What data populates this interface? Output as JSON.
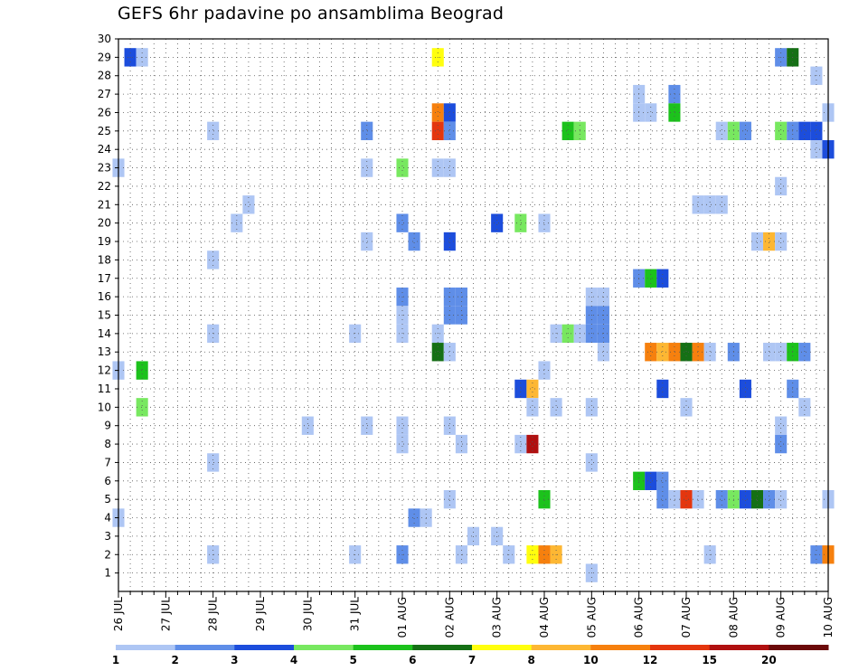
{
  "title": "GEFS 6hr padavine po ansamblima Beograd",
  "chart_data": {
    "type": "heatmap",
    "title": "GEFS 6hr padavine po ansamblima Beograd",
    "x_days": [
      "26 JUL",
      "27 JUL",
      "28 JUL",
      "29 JUL",
      "30 JUL",
      "31 JUL",
      "01 AUG",
      "02 AUG",
      "03 AUG",
      "04 AUG",
      "05 AUG",
      "06 AUG",
      "07 AUG",
      "08 AUG",
      "09 AUG",
      "10 AUG"
    ],
    "x_step": "6hr",
    "xlim_steps": [
      0,
      60
    ],
    "y_members": [
      1,
      2,
      3,
      4,
      5,
      6,
      7,
      8,
      9,
      10,
      11,
      12,
      13,
      14,
      15,
      16,
      17,
      18,
      19,
      20,
      21,
      22,
      23,
      24,
      25,
      26,
      27,
      28,
      29,
      30
    ],
    "ylim": [
      0,
      30
    ],
    "grid": "dotted",
    "colorbar": {
      "ticks": [
        "1",
        "2",
        "3",
        "4",
        "5",
        "6",
        "7",
        "8",
        "10",
        "12",
        "15",
        "20"
      ],
      "colors": [
        "#aec6f4",
        "#5f8ee8",
        "#1c4ddc",
        "#78e860",
        "#1cc21c",
        "#157015",
        "#ffff0e",
        "#fdb733",
        "#f6800e",
        "#e4360e",
        "#b01010",
        "#6b0a0a"
      ]
    },
    "cells": [
      [
        1,
        29,
        2
      ],
      [
        2,
        29,
        0
      ],
      [
        27,
        29,
        6
      ],
      [
        56,
        29,
        1
      ],
      [
        57,
        29,
        5
      ],
      [
        59,
        28,
        0
      ],
      [
        44,
        27,
        0
      ],
      [
        47,
        27,
        1
      ],
      [
        27,
        26,
        8
      ],
      [
        28,
        26,
        2
      ],
      [
        44,
        26,
        0
      ],
      [
        45,
        26,
        0
      ],
      [
        47,
        26,
        4
      ],
      [
        60,
        26,
        0
      ],
      [
        8,
        25,
        0
      ],
      [
        21,
        25,
        1
      ],
      [
        27,
        25,
        9
      ],
      [
        28,
        25,
        1
      ],
      [
        38,
        25,
        4
      ],
      [
        39,
        25,
        3
      ],
      [
        51,
        25,
        0
      ],
      [
        52,
        25,
        3
      ],
      [
        53,
        25,
        1
      ],
      [
        56,
        25,
        3
      ],
      [
        57,
        25,
        1
      ],
      [
        58,
        25,
        2
      ],
      [
        59,
        25,
        2
      ],
      [
        59,
        24,
        0
      ],
      [
        60,
        24,
        2
      ],
      [
        0,
        23,
        0
      ],
      [
        21,
        23,
        0
      ],
      [
        24,
        23,
        3
      ],
      [
        27,
        23,
        0
      ],
      [
        28,
        23,
        0
      ],
      [
        56,
        22,
        0
      ],
      [
        11,
        21,
        0
      ],
      [
        49,
        21,
        0
      ],
      [
        50,
        21,
        0
      ],
      [
        51,
        21,
        0
      ],
      [
        10,
        20,
        0
      ],
      [
        24,
        20,
        1
      ],
      [
        32,
        20,
        2
      ],
      [
        34,
        20,
        3
      ],
      [
        36,
        20,
        0
      ],
      [
        21,
        19,
        0
      ],
      [
        25,
        19,
        1
      ],
      [
        28,
        19,
        2
      ],
      [
        54,
        19,
        0
      ],
      [
        55,
        19,
        7
      ],
      [
        56,
        19,
        0
      ],
      [
        8,
        18,
        0
      ],
      [
        44,
        17,
        1
      ],
      [
        45,
        17,
        4
      ],
      [
        46,
        17,
        2
      ],
      [
        24,
        16,
        1
      ],
      [
        28,
        16,
        1
      ],
      [
        29,
        16,
        1
      ],
      [
        40,
        16,
        0
      ],
      [
        41,
        16,
        0
      ],
      [
        24,
        15,
        0
      ],
      [
        28,
        15,
        1
      ],
      [
        29,
        15,
        1
      ],
      [
        40,
        15,
        1
      ],
      [
        41,
        15,
        1
      ],
      [
        8,
        14,
        0
      ],
      [
        20,
        14,
        0
      ],
      [
        24,
        14,
        0
      ],
      [
        27,
        14,
        0
      ],
      [
        37,
        14,
        0
      ],
      [
        38,
        14,
        3
      ],
      [
        39,
        14,
        0
      ],
      [
        40,
        14,
        1
      ],
      [
        41,
        14,
        1
      ],
      [
        27,
        13,
        5
      ],
      [
        28,
        13,
        0
      ],
      [
        41,
        13,
        0
      ],
      [
        45,
        13,
        8
      ],
      [
        46,
        13,
        7
      ],
      [
        47,
        13,
        8
      ],
      [
        48,
        13,
        5
      ],
      [
        49,
        13,
        8
      ],
      [
        50,
        13,
        0
      ],
      [
        52,
        13,
        1
      ],
      [
        55,
        13,
        0
      ],
      [
        56,
        13,
        0
      ],
      [
        57,
        13,
        4
      ],
      [
        58,
        13,
        1
      ],
      [
        0,
        12,
        0
      ],
      [
        2,
        12,
        4
      ],
      [
        36,
        12,
        0
      ],
      [
        34,
        11,
        2
      ],
      [
        35,
        11,
        7
      ],
      [
        46,
        11,
        2
      ],
      [
        53,
        11,
        2
      ],
      [
        57,
        11,
        1
      ],
      [
        2,
        10,
        3
      ],
      [
        35,
        10,
        0
      ],
      [
        37,
        10,
        0
      ],
      [
        40,
        10,
        0
      ],
      [
        48,
        10,
        0
      ],
      [
        58,
        10,
        0
      ],
      [
        16,
        9,
        0
      ],
      [
        21,
        9,
        0
      ],
      [
        24,
        9,
        0
      ],
      [
        28,
        9,
        0
      ],
      [
        56,
        9,
        0
      ],
      [
        24,
        8,
        0
      ],
      [
        29,
        8,
        0
      ],
      [
        34,
        8,
        0
      ],
      [
        35,
        8,
        10
      ],
      [
        56,
        8,
        1
      ],
      [
        8,
        7,
        0
      ],
      [
        40,
        7,
        0
      ],
      [
        44,
        6,
        4
      ],
      [
        45,
        6,
        2
      ],
      [
        46,
        6,
        1
      ],
      [
        28,
        5,
        0
      ],
      [
        36,
        5,
        4
      ],
      [
        46,
        5,
        1
      ],
      [
        47,
        5,
        0
      ],
      [
        48,
        5,
        9
      ],
      [
        49,
        5,
        0
      ],
      [
        51,
        5,
        1
      ],
      [
        52,
        5,
        3
      ],
      [
        53,
        5,
        2
      ],
      [
        54,
        5,
        5
      ],
      [
        55,
        5,
        1
      ],
      [
        56,
        5,
        0
      ],
      [
        60,
        5,
        0
      ],
      [
        0,
        4,
        0
      ],
      [
        25,
        4,
        1
      ],
      [
        26,
        4,
        0
      ],
      [
        30,
        3,
        0
      ],
      [
        32,
        3,
        0
      ],
      [
        8,
        2,
        0
      ],
      [
        20,
        2,
        0
      ],
      [
        24,
        2,
        1
      ],
      [
        29,
        2,
        0
      ],
      [
        33,
        2,
        0
      ],
      [
        35,
        2,
        6
      ],
      [
        36,
        2,
        8
      ],
      [
        37,
        2,
        7
      ],
      [
        50,
        2,
        0
      ],
      [
        59,
        2,
        1
      ],
      [
        60,
        2,
        8
      ],
      [
        40,
        1,
        0
      ]
    ]
  }
}
